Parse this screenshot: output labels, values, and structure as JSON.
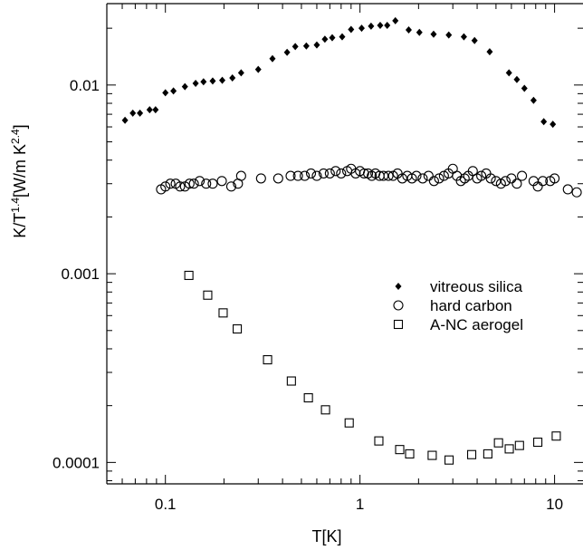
{
  "chart_data": {
    "type": "scatter",
    "title": "",
    "xlabel": "T[K]",
    "ylabel": {
      "base": "K/T",
      "exp1": "1.4",
      "mid": "[W/m K",
      "exp2": "2.4",
      "end": "]"
    },
    "xscale": "log",
    "yscale": "log",
    "xlim": [
      0.05,
      14
    ],
    "ylim": [
      7.7e-05,
      0.027
    ],
    "grid": false,
    "legend_position": "center-right",
    "x_ticks": [
      {
        "value": 0.1,
        "label": "0.1"
      },
      {
        "value": 1,
        "label": "1"
      },
      {
        "value": 10,
        "label": "10"
      }
    ],
    "y_ticks": [
      {
        "value": 0.0001,
        "label": "0.0001"
      },
      {
        "value": 0.001,
        "label": "0.001"
      },
      {
        "value": 0.01,
        "label": "0.01"
      }
    ],
    "series": [
      {
        "name": "vitreous silica",
        "marker": "diamond",
        "color": "#000000",
        "points": [
          [
            0.062,
            0.0065
          ],
          [
            0.068,
            0.0071
          ],
          [
            0.074,
            0.0071
          ],
          [
            0.083,
            0.0074
          ],
          [
            0.089,
            0.0074
          ],
          [
            0.1,
            0.0091
          ],
          [
            0.11,
            0.0093
          ],
          [
            0.126,
            0.0098
          ],
          [
            0.143,
            0.0102
          ],
          [
            0.157,
            0.0104
          ],
          [
            0.175,
            0.0105
          ],
          [
            0.196,
            0.0106
          ],
          [
            0.221,
            0.0109
          ],
          [
            0.245,
            0.0116
          ],
          [
            0.3,
            0.0121
          ],
          [
            0.355,
            0.0138
          ],
          [
            0.422,
            0.0149
          ],
          [
            0.465,
            0.016
          ],
          [
            0.53,
            0.0161
          ],
          [
            0.6,
            0.0163
          ],
          [
            0.66,
            0.0175
          ],
          [
            0.72,
            0.0178
          ],
          [
            0.81,
            0.018
          ],
          [
            0.9,
            0.0197
          ],
          [
            1.02,
            0.02
          ],
          [
            1.14,
            0.0205
          ],
          [
            1.27,
            0.0207
          ],
          [
            1.38,
            0.0207
          ],
          [
            1.52,
            0.0219
          ],
          [
            1.78,
            0.0196
          ],
          [
            2.02,
            0.019
          ],
          [
            2.39,
            0.0186
          ],
          [
            2.86,
            0.0184
          ],
          [
            3.42,
            0.018
          ],
          [
            3.88,
            0.0172
          ],
          [
            4.64,
            0.015
          ],
          [
            5.83,
            0.0116
          ],
          [
            6.4,
            0.0107
          ],
          [
            7.0,
            0.0096
          ],
          [
            7.8,
            0.0083
          ],
          [
            8.8,
            0.0064
          ],
          [
            9.8,
            0.0062
          ]
        ]
      },
      {
        "name": "hard carbon",
        "marker": "circle",
        "color": "#000000",
        "points": [
          [
            0.095,
            0.0028
          ],
          [
            0.1,
            0.0029
          ],
          [
            0.106,
            0.003
          ],
          [
            0.113,
            0.003
          ],
          [
            0.119,
            0.0029
          ],
          [
            0.126,
            0.0029
          ],
          [
            0.133,
            0.003
          ],
          [
            0.14,
            0.003
          ],
          [
            0.15,
            0.0031
          ],
          [
            0.162,
            0.003
          ],
          [
            0.175,
            0.003
          ],
          [
            0.195,
            0.0031
          ],
          [
            0.218,
            0.0029
          ],
          [
            0.236,
            0.003
          ],
          [
            0.245,
            0.0033
          ],
          [
            0.31,
            0.0032
          ],
          [
            0.38,
            0.0032
          ],
          [
            0.44,
            0.0033
          ],
          [
            0.48,
            0.0033
          ],
          [
            0.52,
            0.0033
          ],
          [
            0.56,
            0.0034
          ],
          [
            0.6,
            0.0033
          ],
          [
            0.65,
            0.0034
          ],
          [
            0.7,
            0.0034
          ],
          [
            0.75,
            0.0035
          ],
          [
            0.8,
            0.0034
          ],
          [
            0.86,
            0.0035
          ],
          [
            0.9,
            0.0036
          ],
          [
            0.95,
            0.0034
          ],
          [
            1.0,
            0.0035
          ],
          [
            1.05,
            0.0034
          ],
          [
            1.1,
            0.0034
          ],
          [
            1.15,
            0.0033
          ],
          [
            1.2,
            0.0034
          ],
          [
            1.26,
            0.0033
          ],
          [
            1.32,
            0.0033
          ],
          [
            1.4,
            0.0033
          ],
          [
            1.48,
            0.0033
          ],
          [
            1.56,
            0.0034
          ],
          [
            1.65,
            0.0032
          ],
          [
            1.75,
            0.0033
          ],
          [
            1.85,
            0.0032
          ],
          [
            1.95,
            0.0033
          ],
          [
            2.1,
            0.0032
          ],
          [
            2.25,
            0.0033
          ],
          [
            2.4,
            0.0031
          ],
          [
            2.55,
            0.0032
          ],
          [
            2.7,
            0.0033
          ],
          [
            2.85,
            0.0034
          ],
          [
            3.0,
            0.0036
          ],
          [
            3.15,
            0.0033
          ],
          [
            3.3,
            0.0031
          ],
          [
            3.45,
            0.0032
          ],
          [
            3.6,
            0.0033
          ],
          [
            3.8,
            0.0035
          ],
          [
            4.0,
            0.0032
          ],
          [
            4.2,
            0.0033
          ],
          [
            4.45,
            0.0034
          ],
          [
            4.7,
            0.0032
          ],
          [
            5.0,
            0.0031
          ],
          [
            5.3,
            0.003
          ],
          [
            5.6,
            0.0031
          ],
          [
            6.0,
            0.0032
          ],
          [
            6.4,
            0.003
          ],
          [
            6.8,
            0.0033
          ],
          [
            7.8,
            0.0031
          ],
          [
            8.2,
            0.0029
          ],
          [
            8.7,
            0.0031
          ],
          [
            9.5,
            0.0031
          ],
          [
            10.0,
            0.0032
          ],
          [
            11.7,
            0.0028
          ],
          [
            13.0,
            0.0027
          ]
        ]
      },
      {
        "name": "A-NC aerogel",
        "marker": "square",
        "color": "#000000",
        "points": [
          [
            0.132,
            0.00098
          ],
          [
            0.165,
            0.00077
          ],
          [
            0.198,
            0.00062
          ],
          [
            0.234,
            0.00051
          ],
          [
            0.335,
            0.00035
          ],
          [
            0.444,
            0.00027
          ],
          [
            0.543,
            0.00022
          ],
          [
            0.665,
            0.00019
          ],
          [
            0.88,
            0.000162
          ],
          [
            1.25,
            0.00013
          ],
          [
            1.6,
            0.000117
          ],
          [
            1.8,
            0.000111
          ],
          [
            2.35,
            0.000109
          ],
          [
            2.87,
            0.000103
          ],
          [
            3.75,
            0.00011
          ],
          [
            4.54,
            0.000111
          ],
          [
            5.15,
            0.000127
          ],
          [
            5.85,
            0.000118
          ],
          [
            6.6,
            0.000123
          ],
          [
            8.2,
            0.000128
          ],
          [
            10.2,
            0.000138
          ]
        ]
      }
    ]
  }
}
